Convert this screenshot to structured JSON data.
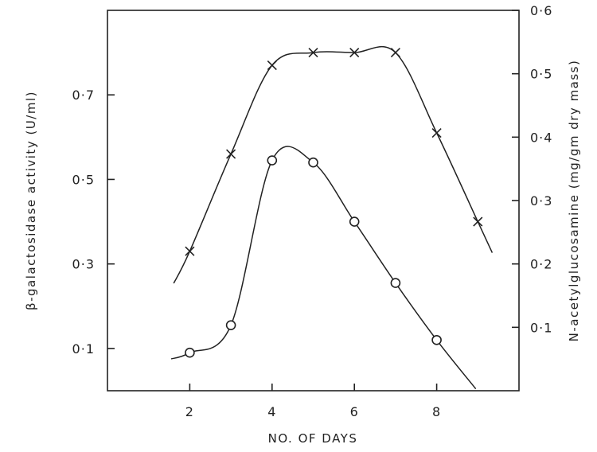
{
  "chart_data": {
    "type": "line",
    "xlabel": "NO. OF DAYS",
    "ylabel_left": "β-galactosidase activity (U/ml)",
    "ylabel_right": "N-acetylglucosamine (mg/gm dry mass)",
    "xlim": [
      0,
      10
    ],
    "ylim_left": [
      0,
      0.9
    ],
    "ylim_right": [
      0,
      0.6
    ],
    "x_ticks": [
      2,
      4,
      6,
      8
    ],
    "x_tick_labels": [
      "2",
      "4",
      "6",
      "8"
    ],
    "y_left_ticks": [
      0.1,
      0.3,
      0.5,
      0.7
    ],
    "y_left_tick_labels": [
      "0·1",
      "0·3",
      "0·5",
      "0·7"
    ],
    "y_right_ticks": [
      0.1,
      0.2,
      0.3,
      0.4,
      0.5,
      0.6
    ],
    "y_right_tick_labels": [
      "0·1",
      "0·2",
      "0·3",
      "0·4",
      "0·5",
      "0·6"
    ],
    "series": [
      {
        "marker": "x",
        "axis": "left",
        "x": [
          2,
          3,
          4,
          5,
          6,
          7,
          8,
          9
        ],
        "values": [
          0.33,
          0.56,
          0.77,
          0.8,
          0.8,
          0.8,
          0.61,
          0.4
        ]
      },
      {
        "marker": "o",
        "axis": "left",
        "x": [
          2,
          3,
          4,
          5,
          6,
          7,
          8
        ],
        "values": [
          0.09,
          0.155,
          0.545,
          0.54,
          0.4,
          0.255,
          0.12
        ]
      }
    ],
    "grid": false
  }
}
